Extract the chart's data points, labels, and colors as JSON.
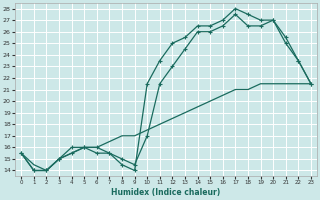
{
  "xlabel": "Humidex (Indice chaleur)",
  "bg_color": "#cde8e8",
  "grid_color": "#ffffff",
  "line_color": "#1a6b5e",
  "xlim": [
    -0.5,
    23.5
  ],
  "ylim": [
    13.5,
    28.5
  ],
  "xticks": [
    0,
    1,
    2,
    3,
    4,
    5,
    6,
    7,
    8,
    9,
    10,
    11,
    12,
    13,
    14,
    15,
    16,
    17,
    18,
    19,
    20,
    21,
    22,
    23
  ],
  "yticks": [
    14,
    15,
    16,
    17,
    18,
    19,
    20,
    21,
    22,
    23,
    24,
    25,
    26,
    27,
    28
  ],
  "line1_x": [
    0,
    1,
    2,
    3,
    4,
    5,
    6,
    7,
    8,
    9,
    10,
    11,
    12,
    13,
    14,
    15,
    16,
    17,
    18,
    19,
    20,
    21,
    22,
    23
  ],
  "line1_y": [
    15.5,
    14.0,
    14.0,
    15.0,
    16.0,
    16.0,
    15.5,
    15.5,
    14.5,
    14.0,
    21.5,
    23.5,
    25.0,
    25.5,
    26.5,
    26.5,
    27.0,
    28.0,
    27.5,
    27.0,
    27.0,
    25.0,
    23.5,
    21.5
  ],
  "line2_x": [
    0,
    1,
    2,
    3,
    4,
    5,
    6,
    7,
    8,
    9,
    10,
    11,
    12,
    13,
    14,
    15,
    16,
    17,
    18,
    19,
    20,
    21,
    22,
    23
  ],
  "line2_y": [
    15.5,
    14.0,
    14.0,
    15.0,
    15.5,
    16.0,
    16.0,
    15.5,
    15.0,
    14.5,
    17.0,
    21.5,
    23.0,
    24.5,
    26.0,
    26.0,
    26.5,
    27.5,
    26.5,
    26.5,
    27.0,
    25.5,
    23.5,
    21.5
  ],
  "line3_x": [
    0,
    1,
    2,
    3,
    4,
    5,
    6,
    7,
    8,
    9,
    10,
    11,
    12,
    13,
    14,
    15,
    16,
    17,
    18,
    19,
    20,
    21,
    22,
    23
  ],
  "line3_y": [
    15.5,
    14.5,
    14.0,
    15.0,
    15.5,
    16.0,
    16.0,
    16.5,
    17.0,
    17.0,
    17.5,
    18.0,
    18.5,
    19.0,
    19.5,
    20.0,
    20.5,
    21.0,
    21.0,
    21.5,
    21.5,
    21.5,
    21.5,
    21.5
  ]
}
